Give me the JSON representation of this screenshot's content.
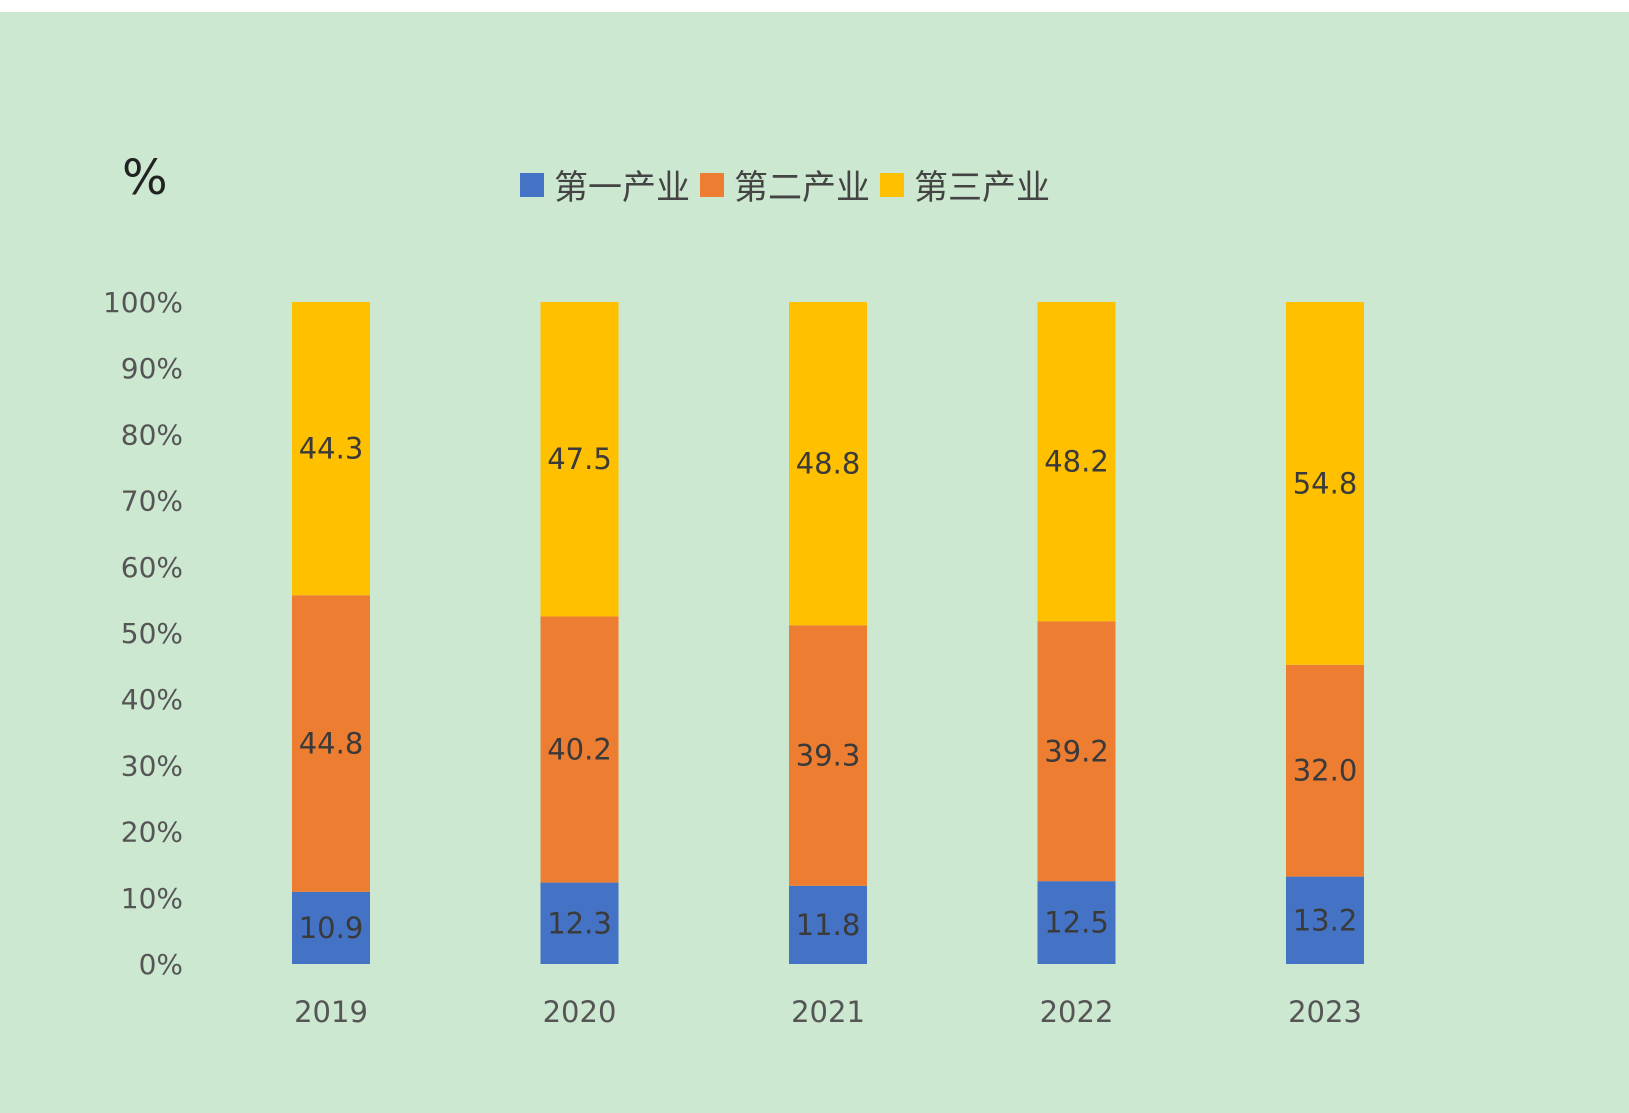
{
  "chart_data": {
    "type": "bar",
    "stacked": "percent",
    "unit_label": "%",
    "categories": [
      "2019",
      "2020",
      "2021",
      "2022",
      "2023"
    ],
    "series": [
      {
        "name": "第一产业",
        "color": "#4472c4",
        "values": [
          10.9,
          12.3,
          11.8,
          12.5,
          13.2
        ]
      },
      {
        "name": "第二产业",
        "color": "#ed7d31",
        "values": [
          44.8,
          40.2,
          39.3,
          39.2,
          32.0
        ]
      },
      {
        "name": "第三产业",
        "color": "#ffc000",
        "values": [
          44.3,
          47.5,
          48.8,
          48.2,
          54.8
        ]
      }
    ],
    "y_ticks": [
      "0%",
      "10%",
      "20%",
      "30%",
      "40%",
      "50%",
      "60%",
      "70%",
      "80%",
      "90%",
      "100%"
    ],
    "ylim": [
      0,
      100
    ],
    "legend_position": "top",
    "grid": false
  }
}
